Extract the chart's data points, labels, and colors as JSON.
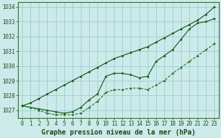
{
  "x": [
    0,
    1,
    2,
    3,
    4,
    5,
    6,
    7,
    8,
    9,
    10,
    11,
    12,
    13,
    14,
    15,
    16,
    17,
    18,
    19,
    20,
    21,
    22,
    23
  ],
  "line_top": [
    1027.3,
    1027.5,
    1027.8,
    1028.1,
    1028.4,
    1028.7,
    1029.0,
    1029.3,
    1029.6,
    1029.9,
    1030.2,
    1030.5,
    1030.7,
    1030.9,
    1031.1,
    1031.3,
    1031.6,
    1031.9,
    1032.2,
    1032.5,
    1032.8,
    1033.1,
    1033.5,
    1034.0
  ],
  "line_mid": [
    1027.3,
    1027.2,
    1027.1,
    1027.0,
    1026.9,
    1026.8,
    1026.9,
    1027.2,
    1027.7,
    1028.1,
    1029.3,
    1029.5,
    1029.5,
    1029.4,
    1029.2,
    1029.3,
    1030.3,
    1030.7,
    1031.1,
    1031.8,
    1032.5,
    1032.9,
    1033.0,
    1033.2
  ],
  "line_bot": [
    1027.3,
    1027.2,
    1027.0,
    1026.8,
    1026.7,
    1026.7,
    1026.7,
    1026.8,
    1027.2,
    1027.6,
    1028.2,
    1028.4,
    1028.4,
    1028.5,
    1028.5,
    1028.4,
    1028.7,
    1029.0,
    1029.5,
    1029.9,
    1030.3,
    1030.7,
    1031.1,
    1031.5
  ],
  "ylim": [
    1026.5,
    1034.3
  ],
  "xlim": [
    -0.5,
    23.5
  ],
  "yticks": [
    1027,
    1028,
    1029,
    1030,
    1031,
    1032,
    1033,
    1034
  ],
  "xticks": [
    0,
    1,
    2,
    3,
    4,
    5,
    6,
    7,
    8,
    9,
    10,
    11,
    12,
    13,
    14,
    15,
    16,
    17,
    18,
    19,
    20,
    21,
    22,
    23
  ],
  "xlabel": "Graphe pression niveau de la mer (hPa)",
  "bg_color": "#cceaea",
  "grid_color": "#99cccc",
  "line_color_dark": "#1a5c1a",
  "line_color_mid": "#206020",
  "line_color_bot": "#2d7a2d",
  "tick_font_size": 5.5,
  "xlabel_font_size": 7,
  "marker_size": 2.0,
  "linewidth": 0.9
}
